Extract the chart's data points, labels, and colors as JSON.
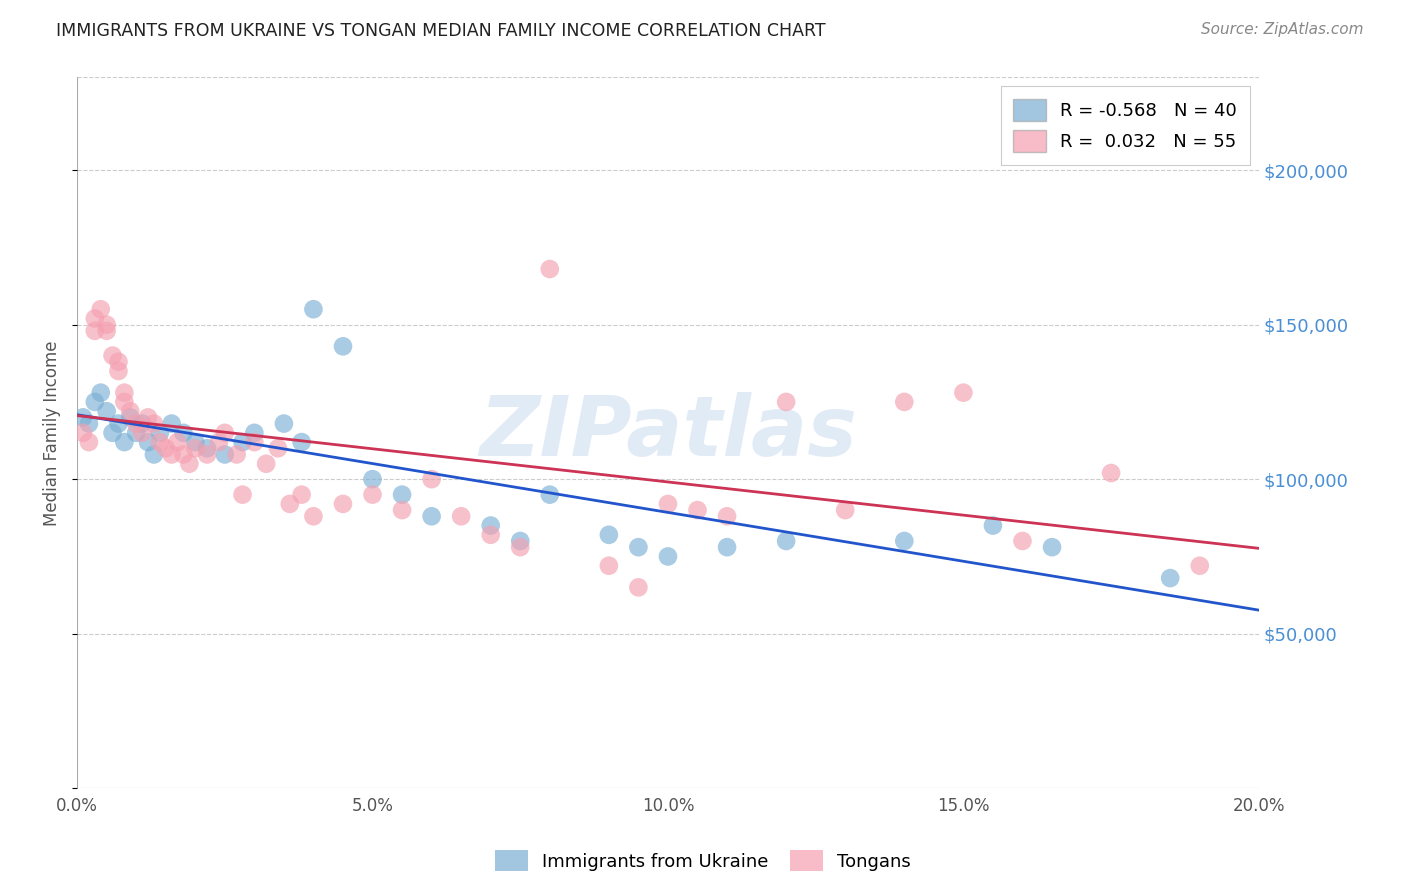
{
  "title": "IMMIGRANTS FROM UKRAINE VS TONGAN MEDIAN FAMILY INCOME CORRELATION CHART",
  "source": "Source: ZipAtlas.com",
  "ylabel": "Median Family Income",
  "xlim": [
    0.0,
    0.2
  ],
  "ylim": [
    0,
    230000
  ],
  "ytick_vals": [
    50000,
    100000,
    150000,
    200000
  ],
  "ytick_labels": [
    "$50,000",
    "$100,000",
    "$150,000",
    "$200,000"
  ],
  "xticks": [
    0.0,
    0.05,
    0.1,
    0.15,
    0.2
  ],
  "xtick_labels": [
    "0.0%",
    "5.0%",
    "10.0%",
    "15.0%",
    "20.0%"
  ],
  "background_color": "#ffffff",
  "grid_color": "#cccccc",
  "ukraine_color": "#7bafd4",
  "tongan_color": "#f4a0b0",
  "ukraine_line_color": "#2255cc",
  "tongan_line_color": "#cc3355",
  "legend_ukraine": "R = -0.568   N = 40",
  "legend_tongan": "R =  0.032   N = 55",
  "watermark": "ZIPatlas",
  "ukraine_x": [
    0.001,
    0.002,
    0.003,
    0.004,
    0.005,
    0.006,
    0.007,
    0.008,
    0.009,
    0.01,
    0.011,
    0.012,
    0.013,
    0.014,
    0.016,
    0.018,
    0.02,
    0.022,
    0.025,
    0.028,
    0.03,
    0.035,
    0.038,
    0.04,
    0.045,
    0.05,
    0.055,
    0.06,
    0.07,
    0.075,
    0.08,
    0.09,
    0.095,
    0.1,
    0.11,
    0.12,
    0.14,
    0.155,
    0.165,
    0.185
  ],
  "ukraine_y": [
    120000,
    118000,
    125000,
    128000,
    122000,
    115000,
    118000,
    112000,
    120000,
    115000,
    118000,
    112000,
    108000,
    115000,
    118000,
    115000,
    112000,
    110000,
    108000,
    112000,
    115000,
    118000,
    112000,
    155000,
    143000,
    100000,
    95000,
    88000,
    85000,
    80000,
    95000,
    82000,
    78000,
    75000,
    78000,
    80000,
    80000,
    85000,
    78000,
    68000
  ],
  "tongan_x": [
    0.001,
    0.002,
    0.003,
    0.003,
    0.004,
    0.005,
    0.005,
    0.006,
    0.007,
    0.007,
    0.008,
    0.008,
    0.009,
    0.01,
    0.011,
    0.012,
    0.013,
    0.014,
    0.015,
    0.016,
    0.017,
    0.018,
    0.019,
    0.02,
    0.022,
    0.024,
    0.025,
    0.027,
    0.028,
    0.03,
    0.032,
    0.034,
    0.036,
    0.038,
    0.04,
    0.045,
    0.05,
    0.055,
    0.06,
    0.065,
    0.07,
    0.075,
    0.08,
    0.09,
    0.095,
    0.1,
    0.105,
    0.11,
    0.12,
    0.13,
    0.14,
    0.15,
    0.16,
    0.175,
    0.19
  ],
  "tongan_y": [
    115000,
    112000,
    148000,
    152000,
    155000,
    150000,
    148000,
    140000,
    135000,
    138000,
    128000,
    125000,
    122000,
    118000,
    115000,
    120000,
    118000,
    112000,
    110000,
    108000,
    112000,
    108000,
    105000,
    110000,
    108000,
    112000,
    115000,
    108000,
    95000,
    112000,
    105000,
    110000,
    92000,
    95000,
    88000,
    92000,
    95000,
    90000,
    100000,
    88000,
    82000,
    78000,
    168000,
    72000,
    65000,
    92000,
    90000,
    88000,
    125000,
    90000,
    125000,
    128000,
    80000,
    102000,
    72000
  ]
}
